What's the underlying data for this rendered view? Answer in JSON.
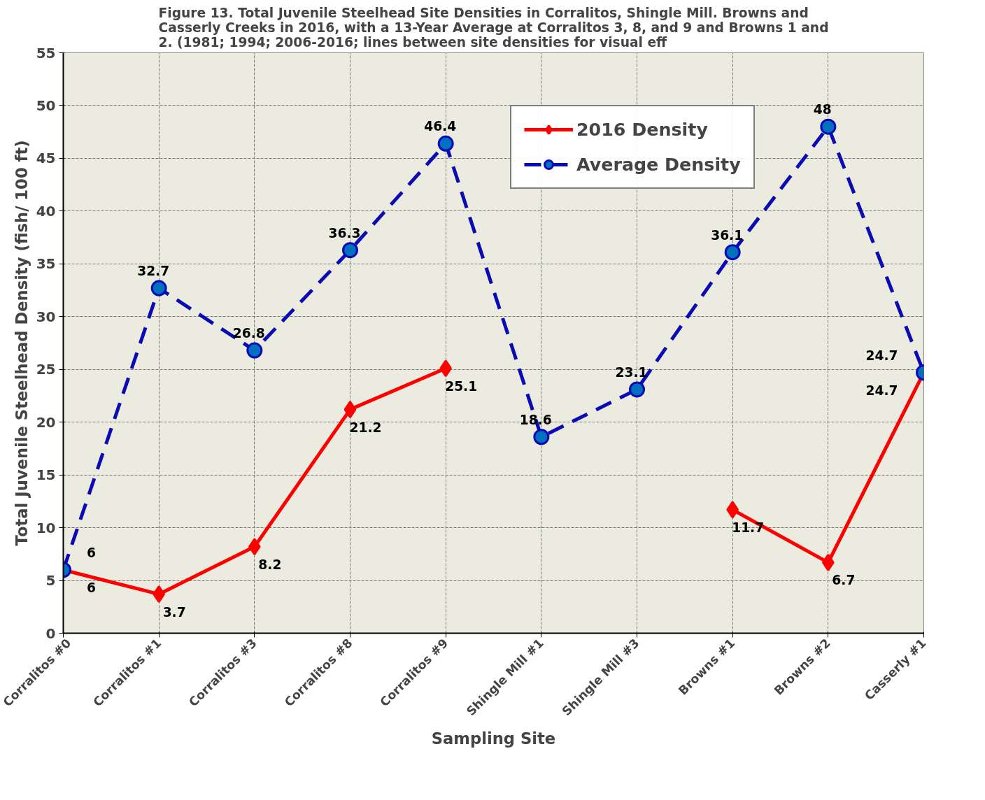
{
  "chart_data": {
    "type": "line",
    "title": "Figure 13.  Total  Juvenile Steelhead Site Densities in Corralitos, Shingle Mill. Browns and Casserly Creeks in 2016, with a 13-Year Average at Corralitos 3, 8, and 9 and Browns 1 and 2. (1981; 1994; 2006-2016; lines between site densities  for visual eff",
    "xlabel": "Sampling Site",
    "ylabel": "Total Juvenile Steelhead Density (fish/ 100 ft)",
    "categories": [
      "Corralitos #0",
      "Corralitos #1",
      "Corralitos #3",
      "Corralitos #8",
      "Corralitos #9",
      "Shingle Mill #1",
      "Shingle Mill #3",
      "Browns #1",
      "Browns #2",
      "Casserly #1"
    ],
    "series": [
      {
        "name": "2016 Density",
        "color": "#ff0000",
        "marker": "diamond",
        "line_style": "solid",
        "values": [
          6,
          3.7,
          8.2,
          21.2,
          25.1,
          null,
          null,
          11.7,
          6.7,
          24.7
        ]
      },
      {
        "name": "Average Density",
        "color": "#0b0bb4",
        "marker": "circle",
        "line_style": "dashed",
        "values": [
          6,
          32.7,
          26.8,
          36.3,
          46.4,
          18.6,
          23.1,
          36.1,
          48,
          24.7
        ]
      }
    ],
    "ylim": [
      0,
      55
    ],
    "yticks": [
      0,
      5,
      10,
      15,
      20,
      25,
      30,
      35,
      40,
      45,
      50,
      55
    ],
    "grid": true,
    "legend": "top right",
    "data_labels": true
  }
}
